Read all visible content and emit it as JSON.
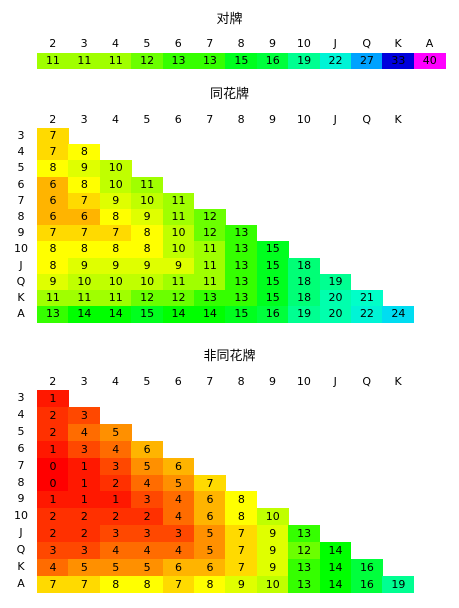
{
  "pairs": {
    "title": "对牌",
    "ranks": [
      "2",
      "3",
      "4",
      "5",
      "6",
      "7",
      "8",
      "9",
      "10",
      "J",
      "Q",
      "K",
      "A"
    ],
    "values": [
      11,
      11,
      11,
      12,
      13,
      13,
      15,
      16,
      19,
      22,
      27,
      33,
      40
    ]
  },
  "suited": {
    "title": "同花牌",
    "col_labels": [
      "2",
      "3",
      "4",
      "5",
      "6",
      "7",
      "8",
      "9",
      "10",
      "J",
      "Q",
      "K"
    ],
    "row_labels": [
      "3",
      "4",
      "5",
      "6",
      "7",
      "8",
      "9",
      "10",
      "J",
      "Q",
      "K",
      "A"
    ],
    "rows": [
      [
        7
      ],
      [
        7,
        8
      ],
      [
        8,
        9,
        10
      ],
      [
        6,
        8,
        10,
        11
      ],
      [
        6,
        7,
        9,
        10,
        11
      ],
      [
        6,
        6,
        8,
        9,
        11,
        12
      ],
      [
        7,
        7,
        7,
        8,
        10,
        12,
        13
      ],
      [
        8,
        8,
        8,
        8,
        10,
        11,
        13,
        15
      ],
      [
        8,
        9,
        9,
        9,
        9,
        11,
        13,
        15,
        18
      ],
      [
        9,
        10,
        10,
        10,
        11,
        11,
        13,
        15,
        18,
        19
      ],
      [
        11,
        11,
        11,
        12,
        12,
        13,
        13,
        15,
        18,
        20,
        21
      ],
      [
        13,
        14,
        14,
        15,
        14,
        14,
        15,
        16,
        19,
        20,
        22,
        24
      ]
    ]
  },
  "offsuit": {
    "title": "非同花牌",
    "col_labels": [
      "2",
      "3",
      "4",
      "5",
      "6",
      "7",
      "8",
      "9",
      "10",
      "J",
      "Q",
      "K"
    ],
    "row_labels": [
      "3",
      "4",
      "5",
      "6",
      "7",
      "8",
      "9",
      "10",
      "J",
      "Q",
      "K",
      "A"
    ],
    "rows": [
      [
        1
      ],
      [
        2,
        3
      ],
      [
        2,
        4,
        5
      ],
      [
        1,
        3,
        4,
        6
      ],
      [
        0,
        1,
        3,
        5,
        6
      ],
      [
        0,
        1,
        2,
        4,
        5,
        7
      ],
      [
        1,
        1,
        1,
        3,
        4,
        6,
        8
      ],
      [
        2,
        2,
        2,
        2,
        4,
        6,
        8,
        10
      ],
      [
        2,
        2,
        3,
        3,
        3,
        5,
        7,
        9,
        13
      ],
      [
        3,
        3,
        4,
        4,
        4,
        5,
        7,
        9,
        12,
        14
      ],
      [
        4,
        5,
        5,
        5,
        6,
        6,
        7,
        9,
        13,
        14,
        16
      ],
      [
        7,
        7,
        8,
        8,
        7,
        8,
        9,
        10,
        13,
        14,
        16,
        19
      ]
    ]
  },
  "chart_data": [
    {
      "type": "heatmap",
      "title": "对牌",
      "x": [
        "2",
        "3",
        "4",
        "5",
        "6",
        "7",
        "8",
        "9",
        "10",
        "J",
        "Q",
        "K",
        "A"
      ],
      "values": [
        11,
        11,
        11,
        12,
        13,
        13,
        15,
        16,
        19,
        22,
        27,
        33,
        40
      ]
    },
    {
      "type": "heatmap",
      "title": "同花牌",
      "x": [
        "2",
        "3",
        "4",
        "5",
        "6",
        "7",
        "8",
        "9",
        "10",
        "J",
        "Q",
        "K"
      ],
      "y": [
        "3",
        "4",
        "5",
        "6",
        "7",
        "8",
        "9",
        "10",
        "J",
        "Q",
        "K",
        "A"
      ],
      "values": "see suited.rows"
    },
    {
      "type": "heatmap",
      "title": "非同花牌",
      "x": [
        "2",
        "3",
        "4",
        "5",
        "6",
        "7",
        "8",
        "9",
        "10",
        "J",
        "Q",
        "K"
      ],
      "y": [
        "3",
        "4",
        "5",
        "6",
        "7",
        "8",
        "9",
        "10",
        "J",
        "Q",
        "K",
        "A"
      ],
      "values": "see offsuit.rows"
    }
  ]
}
